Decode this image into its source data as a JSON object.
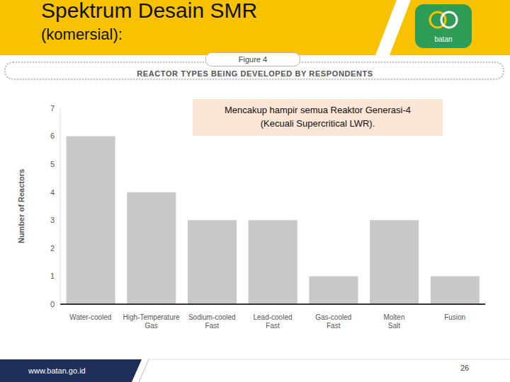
{
  "slide": {
    "title": "Spektrum Desain SMR",
    "subtitle": "(komersial):",
    "logo": "batan",
    "figure": "Figure 4",
    "footer": "www.batan.go.id",
    "page": 26
  },
  "chart_data": {
    "type": "bar",
    "title": "REACTOR TYPES BEING DEVELOPED BY RESPONDENTS",
    "ylabel": "Number of Reactors",
    "categories": [
      "Water-cooled",
      "High-Temperature Gas",
      "Sodium-cooled Fast",
      "Lead-cooled Fast",
      "Gas-cooled Fast",
      "Molten Salt",
      "Fusion"
    ],
    "values": [
      6,
      4,
      3,
      3,
      1,
      3,
      1
    ],
    "color": "#c8c8c8",
    "ylim": [
      0,
      7
    ],
    "yticks": [
      0,
      1,
      2,
      3,
      4,
      5,
      6,
      7
    ],
    "grid": false,
    "annotations": [
      "Mencakup hampir semua Reaktor Generasi-4 (Kecuali Supercritical LWR)."
    ]
  }
}
